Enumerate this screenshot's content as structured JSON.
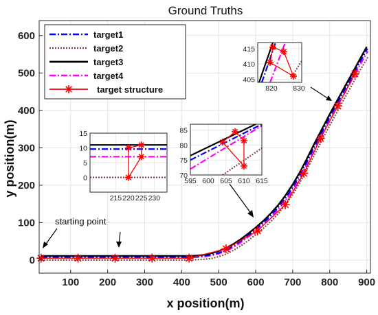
{
  "chart_data": {
    "type": "line",
    "title": "Ground Truths",
    "xlabel": "x position(m)",
    "ylabel": "y position(m)",
    "xlim": [
      15,
      910
    ],
    "ylim": [
      -35,
      640
    ],
    "xticks": [
      100,
      200,
      300,
      400,
      500,
      600,
      700,
      800,
      900
    ],
    "yticks": [
      0,
      100,
      200,
      300,
      400,
      500,
      600
    ],
    "grid": true,
    "legend_position": "top-left",
    "annotations": [
      "starting point"
    ],
    "series": [
      {
        "name": "target1",
        "style": "dash-dot",
        "color": "#0000ff",
        "x": [
          20,
          420,
          440,
          460,
          480,
          500,
          520,
          540,
          560,
          580,
          600,
          620,
          640,
          660,
          680,
          700,
          720,
          740,
          760,
          780,
          800,
          820,
          840,
          860,
          880,
          902
        ],
        "y": [
          8,
          8,
          9,
          11,
          14,
          19,
          27,
          38,
          51,
          66,
          82,
          99,
          118,
          140,
          165,
          194,
          228,
          266,
          306,
          344,
          382,
          418,
          454,
          490,
          526,
          565
        ]
      },
      {
        "name": "target2",
        "style": "dotted",
        "color": "#8b4a4a",
        "x": [
          20,
          420,
          440,
          460,
          480,
          500,
          520,
          540,
          560,
          580,
          600,
          620,
          640,
          660,
          680,
          700,
          720,
          740,
          760,
          780,
          800,
          820,
          840,
          860,
          880,
          905
        ],
        "y": [
          0,
          0,
          1,
          2,
          4,
          9,
          16,
          26,
          38,
          52,
          68,
          84,
          102,
          123,
          147,
          175,
          208,
          245,
          284,
          322,
          360,
          396,
          432,
          468,
          504,
          545
        ]
      },
      {
        "name": "target3",
        "style": "solid",
        "color": "#000000",
        "x": [
          20,
          420,
          440,
          460,
          480,
          500,
          520,
          540,
          560,
          580,
          600,
          620,
          640,
          660,
          680,
          700,
          720,
          740,
          760,
          780,
          800,
          820,
          840,
          860,
          880,
          900
        ],
        "y": [
          11,
          11,
          12,
          14,
          18,
          24,
          32,
          43,
          56,
          71,
          87,
          104,
          124,
          146,
          172,
          202,
          236,
          274,
          314,
          352,
          390,
          426,
          462,
          498,
          534,
          570
        ]
      },
      {
        "name": "target4",
        "style": "dash-dot",
        "color": "#ff00ff",
        "x": [
          20,
          420,
          440,
          460,
          480,
          500,
          520,
          540,
          560,
          580,
          600,
          620,
          640,
          660,
          680,
          700,
          720,
          740,
          760,
          780,
          800,
          820,
          840,
          860,
          880,
          903
        ],
        "y": [
          7,
          7,
          8,
          9,
          12,
          17,
          24,
          34,
          47,
          62,
          77,
          94,
          112,
          134,
          158,
          187,
          220,
          258,
          298,
          336,
          374,
          410,
          446,
          482,
          518,
          558
        ]
      },
      {
        "name": "target structure",
        "style": "solid-asterisk",
        "color": "#ff0000",
        "x": [
          20,
          120,
          220,
          320,
          420,
          520,
          605,
          680,
          730,
          775,
          822,
          868
        ],
        "y": [
          5,
          5,
          5,
          5,
          5,
          30,
          78,
          148,
          232,
          325,
          412,
          498
        ]
      }
    ],
    "insets": [
      {
        "xlim": [
          205,
          235
        ],
        "ylim": [
          -5,
          15
        ],
        "xticks": [
          215,
          220,
          225,
          230
        ],
        "yticks": [
          0,
          5,
          10,
          15
        ],
        "lines": {
          "target1": 9.6,
          "target2": 0,
          "target3": 11,
          "target4": 7
        },
        "structure": [
          [
            220,
            0
          ],
          [
            220,
            10
          ],
          [
            225,
            11
          ],
          [
            225,
            7
          ],
          [
            220,
            0
          ]
        ]
      },
      {
        "xlim": [
          595,
          615
        ],
        "ylim": [
          70,
          87
        ],
        "xticks": [
          595,
          600,
          605,
          610,
          615
        ],
        "yticks": [
          70,
          75,
          80,
          85
        ],
        "lines": {
          "target1": [
            [
              595,
              75
            ],
            [
              615,
              87
            ]
          ],
          "target2": [
            [
              604,
              70
            ],
            [
              615,
              79
            ]
          ],
          "target3": [
            [
              595,
              76.5
            ],
            [
              615,
              88
            ]
          ],
          "target4": [
            [
              595,
              72
            ],
            [
              615,
              86.5
            ]
          ]
        },
        "structure": [
          [
            604,
            81
          ],
          [
            607.5,
            84.5
          ],
          [
            610,
            81.5
          ],
          [
            610,
            73
          ],
          [
            604,
            81
          ]
        ]
      },
      {
        "xlim": [
          815,
          831
        ],
        "ylim": [
          404,
          417
        ],
        "xticks": [
          820,
          830
        ],
        "yticks": [
          405,
          410,
          415
        ],
        "lines": {
          "target1": [
            [
              816.5,
              404
            ],
            [
              821.5,
              417
            ]
          ],
          "target2": [
            [
              827.5,
              406
            ],
            [
              831,
              411
            ]
          ],
          "target3": [
            [
              815.5,
              404
            ],
            [
              820.5,
              417
            ]
          ],
          "target4": [
            [
              819.5,
              404
            ],
            [
              825,
              417
            ]
          ]
        },
        "structure": [
          [
            819.5,
            410.5
          ],
          [
            820.5,
            415.5
          ],
          [
            824.5,
            414
          ],
          [
            828,
            406
          ],
          [
            819.5,
            410.5
          ]
        ]
      }
    ]
  }
}
